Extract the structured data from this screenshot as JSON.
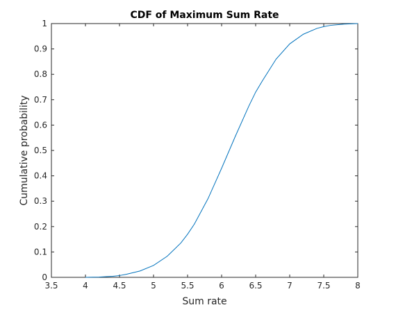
{
  "chart_data": {
    "type": "line",
    "title": "CDF of Maximum Sum Rate",
    "xlabel": "Sum rate",
    "ylabel": "Cumulative probability",
    "xlim": [
      3.5,
      8
    ],
    "ylim": [
      0,
      1
    ],
    "xticks": [
      3.5,
      4,
      4.5,
      5,
      5.5,
      6,
      6.5,
      7,
      7.5,
      8
    ],
    "xtick_labels": [
      "3.5",
      "4",
      "4.5",
      "5",
      "5.5",
      "6",
      "6.5",
      "7",
      "7.5",
      "8"
    ],
    "yticks": [
      0,
      0.1,
      0.2,
      0.3,
      0.4,
      0.5,
      0.6,
      0.7,
      0.8,
      0.9,
      1
    ],
    "ytick_labels": [
      "0",
      "0.1",
      "0.2",
      "0.3",
      "0.4",
      "0.5",
      "0.6",
      "0.7",
      "0.8",
      "0.9",
      "1"
    ],
    "grid": false,
    "legend": "none",
    "series": [
      {
        "color": "#0072BD",
        "x": [
          4.0,
          4.2,
          4.4,
          4.5,
          4.6,
          4.8,
          5.0,
          5.2,
          5.4,
          5.5,
          5.6,
          5.8,
          6.0,
          6.2,
          6.4,
          6.5,
          6.6,
          6.8,
          7.0,
          7.2,
          7.4,
          7.5,
          7.6,
          7.8,
          8.0
        ],
        "y": [
          0.0,
          0.001,
          0.004,
          0.007,
          0.012,
          0.025,
          0.047,
          0.083,
          0.135,
          0.17,
          0.21,
          0.31,
          0.43,
          0.555,
          0.675,
          0.73,
          0.775,
          0.86,
          0.92,
          0.958,
          0.981,
          0.988,
          0.993,
          0.998,
          1.0
        ]
      }
    ]
  }
}
